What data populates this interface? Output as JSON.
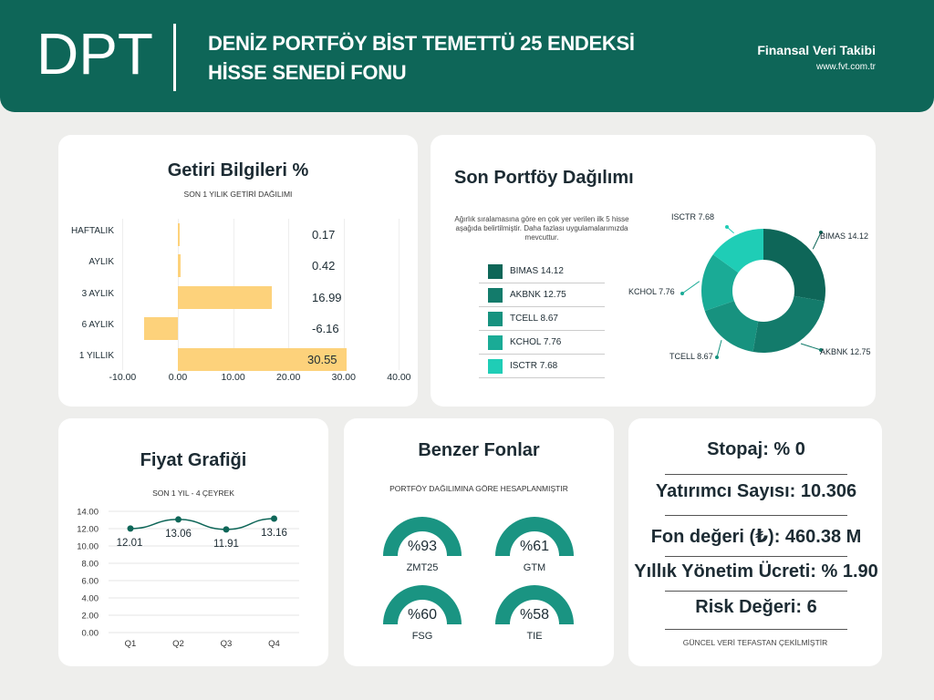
{
  "header": {
    "code": "DPT",
    "title_line1": "DENİZ PORTFÖY BİST TEMETTÜ 25 ENDEKSİ",
    "title_line2": "HİSSE SENEDİ FONU",
    "brand": "Finansal Veri Takibi",
    "website": "www.fvt.com.tr"
  },
  "returns": {
    "title": "Getiri Bilgileri %",
    "subtitle": "SON 1 YILIK GETİRİ DAĞILIMI",
    "items": [
      {
        "label": "HAFTALIK",
        "value": 0.17,
        "text": "0.17"
      },
      {
        "label": "AYLIK",
        "value": 0.42,
        "text": "0.42"
      },
      {
        "label": "3 AYLIK",
        "value": 16.99,
        "text": "16.99"
      },
      {
        "label": "6 AYLIK",
        "value": -6.16,
        "text": "-6.16"
      },
      {
        "label": "1 YILLIK",
        "value": 30.55,
        "text": "30.55"
      }
    ],
    "axis_ticks": [
      "-10.00",
      "0.00",
      "10.00",
      "20.00",
      "30.00",
      "40.00"
    ],
    "bar_color": "#fdd27b"
  },
  "portfolio": {
    "title": "Son Portföy Dağılımı",
    "note": "Ağırlık sıralamasına göre en çok yer verilen ilk 5 hisse aşağıda belirtilmiştir. Daha fazlası uygulamalarımızda mevcuttur.",
    "items": [
      {
        "name": "BIMAS",
        "value": 14.12,
        "text": "BIMAS  14.12",
        "chart_label": "BIMAS 14.12",
        "color": "#0e6658"
      },
      {
        "name": "AKBNK",
        "value": 12.75,
        "text": "AKBNK  12.75",
        "chart_label": "AKBNK 12.75",
        "color": "#137b6b"
      },
      {
        "name": "TCELL",
        "value": 8.67,
        "text": "TCELL  8.67",
        "chart_label": "TCELL 8.67",
        "color": "#17927f"
      },
      {
        "name": "KCHOL",
        "value": 7.76,
        "text": "KCHOL  7.76",
        "chart_label": "KCHOL 7.76",
        "color": "#1aab96"
      },
      {
        "name": "ISCTR",
        "value": 7.68,
        "text": "ISCTR  7.68",
        "chart_label": "ISCTR 7.68",
        "color": "#1fcdb6"
      }
    ]
  },
  "price": {
    "title": "Fiyat Grafiği",
    "subtitle": "SON 1 YIL - 4 ÇEYREK",
    "y_ticks": [
      "14.00",
      "12.00",
      "10.00",
      "8.00",
      "6.00",
      "4.00",
      "2.00",
      "0.00"
    ],
    "categories": [
      "Q1",
      "Q2",
      "Q3",
      "Q4"
    ],
    "values": [
      12.01,
      13.06,
      11.91,
      13.16
    ],
    "value_labels": [
      "12.01",
      "13.06",
      "11.91",
      "13.16"
    ],
    "line_color": "#0e6658"
  },
  "similar": {
    "title": "Benzer Fonlar",
    "subtitle": "PORTFÖY DAĞILIMINA GÖRE HESAPLANMIŞTIR",
    "items": [
      {
        "name": "ZMT25",
        "pct": 93,
        "text": "%93"
      },
      {
        "name": "GTM",
        "pct": 61,
        "text": "%61"
      },
      {
        "name": "FSG",
        "pct": 60,
        "text": "%60"
      },
      {
        "name": "TIE",
        "pct": 58,
        "text": "%58"
      }
    ],
    "gauge_color": "#1a9482"
  },
  "info": {
    "stopaj": "Stopaj: % 0",
    "investors": "Yatırımcı Sayısı: 10.306",
    "fund_value": "Fon değeri (₺): 460.38 M",
    "fee": "Yıllık Yönetim Ücreti: % 1.90",
    "risk": "Risk Değeri: 6",
    "footer": "GÜNCEL VERİ TEFASTAN ÇEKİLMİŞTİR"
  },
  "chart_data": [
    {
      "type": "bar",
      "title": "Getiri Bilgileri %",
      "subtitle": "SON 1 YILIK GETİRİ DAĞILIMI",
      "orientation": "horizontal",
      "categories": [
        "HAFTALIK",
        "AYLIK",
        "3 AYLIK",
        "6 AYLIK",
        "1 YILLIK"
      ],
      "values": [
        0.17,
        0.42,
        16.99,
        -6.16,
        30.55
      ],
      "xlim": [
        -10,
        40
      ]
    },
    {
      "type": "pie",
      "title": "Son Portföy Dağılımı",
      "categories": [
        "BIMAS",
        "AKBNK",
        "TCELL",
        "KCHOL",
        "ISCTR"
      ],
      "values": [
        14.12,
        12.75,
        8.67,
        7.76,
        7.68
      ]
    },
    {
      "type": "line",
      "title": "Fiyat Grafiği",
      "subtitle": "SON 1 YIL - 4 ÇEYREK",
      "categories": [
        "Q1",
        "Q2",
        "Q3",
        "Q4"
      ],
      "values": [
        12.01,
        13.06,
        11.91,
        13.16
      ],
      "ylim": [
        0,
        14
      ]
    }
  ]
}
